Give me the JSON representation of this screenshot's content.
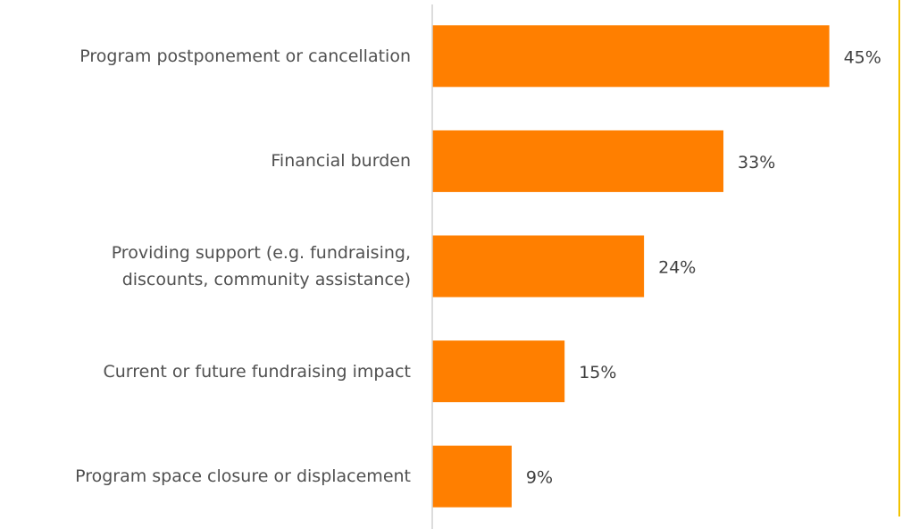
{
  "chart_data": {
    "type": "bar",
    "orientation": "horizontal",
    "categories": [
      "Program postponement or cancellation",
      "Financial burden",
      "Providing support (e.g. fundraising,\ndiscounts, community assistance)",
      "Current or future fundraising impact",
      "Program space closure or displacement"
    ],
    "values": [
      45,
      33,
      24,
      15,
      9
    ],
    "value_labels": [
      "45%",
      "33%",
      "24%",
      "15%",
      "9%"
    ],
    "color": "#ff7f00",
    "xlim": [
      0,
      50
    ]
  }
}
